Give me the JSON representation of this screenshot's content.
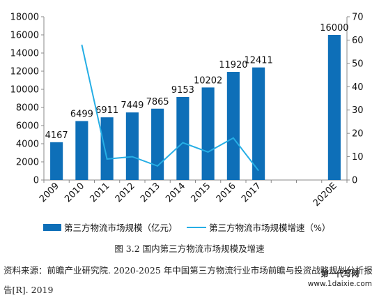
{
  "chart_data": {
    "type": "bar",
    "categories": [
      "2009",
      "2010",
      "2011",
      "2012",
      "2013",
      "2014",
      "2015",
      "2016",
      "2017",
      "",
      "",
      "2020E"
    ],
    "series": [
      {
        "name": "第三方物流市场规模（亿元）",
        "type": "bar",
        "axis": "left",
        "values": [
          4167,
          6499,
          6911,
          7449,
          7865,
          9153,
          10202,
          11920,
          12411,
          null,
          null,
          16000
        ],
        "labels": [
          "4167",
          "6499",
          "6911",
          "7449",
          "7865",
          "9153",
          "10202",
          "11920",
          "12411",
          "",
          "",
          "16000"
        ]
      },
      {
        "name": "第三方物流市场规模增速（%）",
        "type": "line",
        "axis": "right",
        "values": [
          null,
          58,
          9,
          10,
          6,
          16,
          12,
          18,
          4,
          null,
          null,
          null
        ]
      }
    ],
    "y_left": {
      "range": [
        0,
        18000
      ],
      "ticks": [
        "0",
        "2000",
        "4000",
        "6000",
        "8000",
        "10000",
        "12000",
        "14000",
        "16000",
        "18000"
      ]
    },
    "y_right": {
      "range": [
        0,
        70
      ],
      "ticks": [
        "0",
        "10",
        "20",
        "30",
        "40",
        "50",
        "60",
        "70"
      ]
    },
    "grid": false,
    "legend": "bottom",
    "colors": {
      "bar": "#0e6fb8",
      "line": "#26aee5",
      "axis": "#888888"
    }
  },
  "caption": "图 3.2  国内第三方物流市场规模及增速",
  "source": "资料来源：前瞻产业研究院. 2020-2025 年中国第三方物流行业市场前瞻与投资战略规划分析报告[R]. 2019",
  "watermark": {
    "line1": "第一代写网",
    "line2": "www.1daixie.com"
  }
}
